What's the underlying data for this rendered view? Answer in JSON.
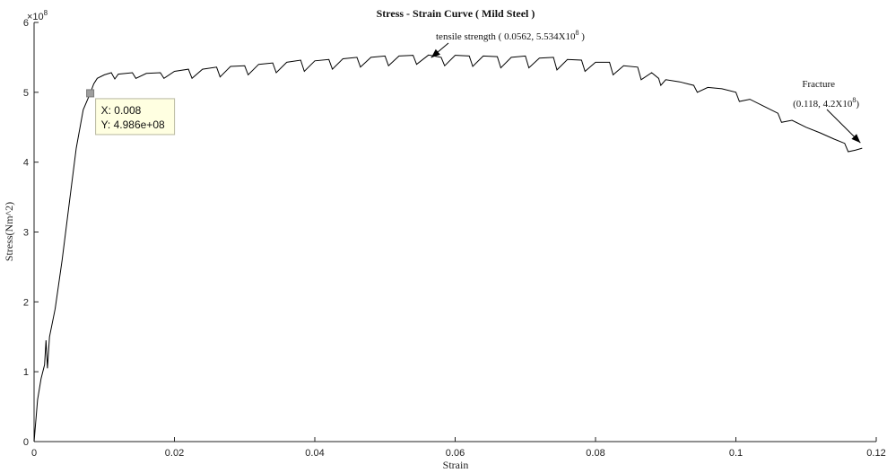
{
  "chart_data": {
    "type": "line",
    "title": "Stress - Strain Curve ( Mild Steel )",
    "xlabel": "Strain",
    "ylabel": "Stress(Nm^2)",
    "y_exponent_label": "×10",
    "y_exponent_power": "8",
    "xlim": [
      0,
      0.12
    ],
    "ylim": [
      0,
      6
    ],
    "x_ticks": [
      0,
      0.02,
      0.04,
      0.06,
      0.08,
      0.1,
      0.12
    ],
    "x_tick_labels": [
      "0",
      "0.02",
      "0.04",
      "0.06",
      "0.08",
      "0.1",
      "0.12"
    ],
    "y_ticks": [
      0,
      1,
      2,
      3,
      4,
      5,
      6
    ],
    "y_tick_labels": [
      "0",
      "1",
      "2",
      "3",
      "4",
      "5",
      "6"
    ],
    "grid": false,
    "series": [
      {
        "color": "#000000",
        "points": [
          [
            0,
            0
          ],
          [
            0.0005,
            0.6
          ],
          [
            0.001,
            0.9
          ],
          [
            0.0015,
            1.1
          ],
          [
            0.0017,
            1.45
          ],
          [
            0.0019,
            1.05
          ],
          [
            0.0022,
            1.5
          ],
          [
            0.003,
            1.9
          ],
          [
            0.004,
            2.6
          ],
          [
            0.005,
            3.4
          ],
          [
            0.006,
            4.2
          ],
          [
            0.007,
            4.75
          ],
          [
            0.008,
            4.986
          ],
          [
            0.0085,
            5.12
          ],
          [
            0.009,
            5.2
          ],
          [
            0.01,
            5.25
          ],
          [
            0.011,
            5.28
          ],
          [
            0.0115,
            5.19
          ],
          [
            0.012,
            5.26
          ],
          [
            0.014,
            5.28
          ],
          [
            0.0145,
            5.2
          ],
          [
            0.016,
            5.27
          ],
          [
            0.018,
            5.28
          ],
          [
            0.0185,
            5.2
          ],
          [
            0.02,
            5.3
          ],
          [
            0.022,
            5.33
          ],
          [
            0.0225,
            5.2
          ],
          [
            0.024,
            5.33
          ],
          [
            0.026,
            5.36
          ],
          [
            0.0265,
            5.22
          ],
          [
            0.028,
            5.37
          ],
          [
            0.03,
            5.38
          ],
          [
            0.0305,
            5.25
          ],
          [
            0.032,
            5.4
          ],
          [
            0.034,
            5.42
          ],
          [
            0.0345,
            5.28
          ],
          [
            0.036,
            5.43
          ],
          [
            0.038,
            5.46
          ],
          [
            0.0385,
            5.3
          ],
          [
            0.04,
            5.45
          ],
          [
            0.042,
            5.47
          ],
          [
            0.0425,
            5.33
          ],
          [
            0.044,
            5.48
          ],
          [
            0.046,
            5.5
          ],
          [
            0.0465,
            5.36
          ],
          [
            0.048,
            5.5
          ],
          [
            0.05,
            5.52
          ],
          [
            0.0505,
            5.38
          ],
          [
            0.052,
            5.52
          ],
          [
            0.054,
            5.53
          ],
          [
            0.0545,
            5.4
          ],
          [
            0.0562,
            5.534
          ],
          [
            0.058,
            5.5
          ],
          [
            0.0585,
            5.38
          ],
          [
            0.06,
            5.53
          ],
          [
            0.062,
            5.52
          ],
          [
            0.0625,
            5.37
          ],
          [
            0.064,
            5.52
          ],
          [
            0.066,
            5.51
          ],
          [
            0.0665,
            5.35
          ],
          [
            0.068,
            5.5
          ],
          [
            0.07,
            5.52
          ],
          [
            0.0705,
            5.35
          ],
          [
            0.072,
            5.49
          ],
          [
            0.074,
            5.5
          ],
          [
            0.0745,
            5.32
          ],
          [
            0.076,
            5.47
          ],
          [
            0.078,
            5.46
          ],
          [
            0.0785,
            5.3
          ],
          [
            0.08,
            5.43
          ],
          [
            0.082,
            5.43
          ],
          [
            0.0825,
            5.25
          ],
          [
            0.084,
            5.38
          ],
          [
            0.086,
            5.36
          ],
          [
            0.0865,
            5.18
          ],
          [
            0.088,
            5.28
          ],
          [
            0.089,
            5.2
          ],
          [
            0.0893,
            5.1
          ],
          [
            0.09,
            5.18
          ],
          [
            0.092,
            5.15
          ],
          [
            0.094,
            5.1
          ],
          [
            0.0945,
            5.0
          ],
          [
            0.096,
            5.07
          ],
          [
            0.098,
            5.05
          ],
          [
            0.1,
            5.0
          ],
          [
            0.1005,
            4.87
          ],
          [
            0.102,
            4.9
          ],
          [
            0.104,
            4.8
          ],
          [
            0.106,
            4.7
          ],
          [
            0.1065,
            4.57
          ],
          [
            0.108,
            4.6
          ],
          [
            0.11,
            4.5
          ],
          [
            0.112,
            4.42
          ],
          [
            0.114,
            4.33
          ],
          [
            0.1155,
            4.27
          ],
          [
            0.116,
            4.15
          ],
          [
            0.117,
            4.17
          ],
          [
            0.118,
            4.2
          ]
        ]
      }
    ],
    "annotations": {
      "tensile": {
        "prefix": "tensile strength ( 0.0562, 5.534X10",
        "sup": "8",
        "suffix": " )",
        "point": [
          0.0562,
          5.534
        ]
      },
      "fracture": {
        "line1": "Fracture",
        "line2_prefix": "(0.118, 4.2X10",
        "line2_sup": "8",
        "line2_suffix": ")",
        "point": [
          0.118,
          4.2
        ]
      }
    },
    "datatip": {
      "x_text": "X: 0.008",
      "y_text": "Y: 4.986e+08",
      "point": [
        0.008,
        4.986
      ]
    }
  }
}
